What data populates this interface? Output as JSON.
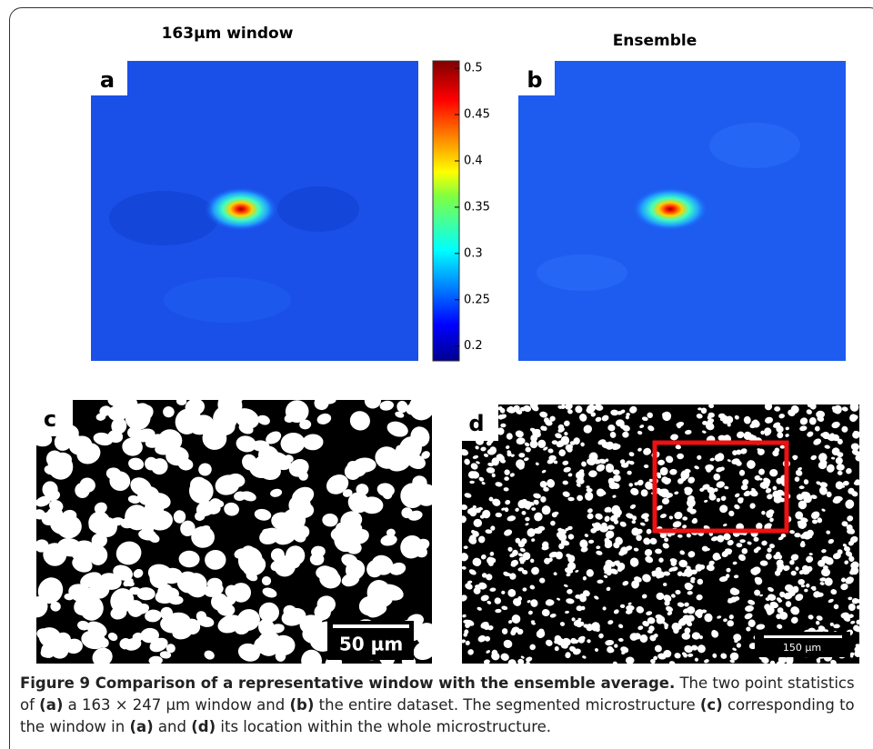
{
  "panels": [
    {
      "letter": "a",
      "title": "163µm window"
    },
    {
      "letter": "b",
      "title": "Ensemble"
    },
    {
      "letter": "c",
      "scale_bar": "50 µm"
    },
    {
      "letter": "d",
      "scale_bar": "150 µm"
    }
  ],
  "colorbar": {
    "lim": [
      0.184,
      0.508
    ],
    "ticks": [
      0.5,
      0.45,
      0.4,
      0.35,
      0.3,
      0.25,
      0.2
    ]
  },
  "caption": {
    "title": "Figure 9 Comparison of a representative window with the ensemble average.",
    "parts": [
      " The two point statistics of ",
      "(a)",
      " a 163 × 247 µm window and ",
      "(b)",
      " the entire dataset. The segmented microstructure ",
      "(c)",
      " corresponding to the window in ",
      "(a)",
      " and ",
      "(d)",
      " its location within the whole microstructure."
    ]
  }
}
